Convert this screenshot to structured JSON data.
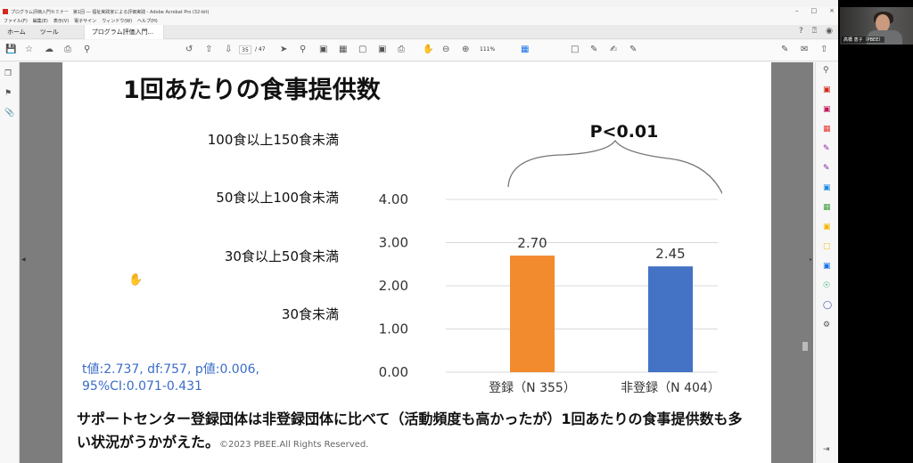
{
  "window": {
    "title": "プログラム評価入門セミナー　第1回 ― 福祉実践家による評価実践 - Adobe Acrobat Pro (32-bit)",
    "controls": [
      "–",
      "□",
      "×"
    ]
  },
  "menu": {
    "items": [
      "ファイル(F)",
      "編集(E)",
      "表示(V)",
      "電子サイン",
      "ウィンドウ(W)",
      "ヘルプ(H)"
    ]
  },
  "tabs": {
    "home": "ホーム",
    "tools": "ツール",
    "document": "プログラム評価入門..."
  },
  "toolbar": {
    "page_current": "35",
    "page_total": "/ 47",
    "zoom": "111%"
  },
  "slide": {
    "title": "1回あたりの食事提供数",
    "categories": [
      "100食以上150食未満",
      "50食以上100食未満",
      "30食以上50食未満",
      "30食未満"
    ],
    "stats_line1": "t値:2.737, df:757, p値:0.006,",
    "stats_line2": "95%CI:0.071-0.431",
    "conclusion": "サポートセンター登録団体は非登録団体に比べて（活動頻度も高かったが）1回あたりの食事提供数も多い状況がうかがえた。",
    "copyright": "©2023 PBEE.All Rights Reserved."
  },
  "chart_data": {
    "type": "bar",
    "categories": [
      "登録（N 355）",
      "非登録（N 404）"
    ],
    "values": [
      2.7,
      2.45
    ],
    "value_labels": [
      "2.70",
      "2.45"
    ],
    "colors": [
      "#f28a2e",
      "#4472c4"
    ],
    "yticks": [
      "0.00",
      "1.00",
      "2.00",
      "3.00",
      "4.00"
    ],
    "ylim": [
      0,
      4
    ],
    "annotation": "P<0.01",
    "grid": true
  },
  "webcam": {
    "name": "高橋 恵子（PBEE）"
  }
}
